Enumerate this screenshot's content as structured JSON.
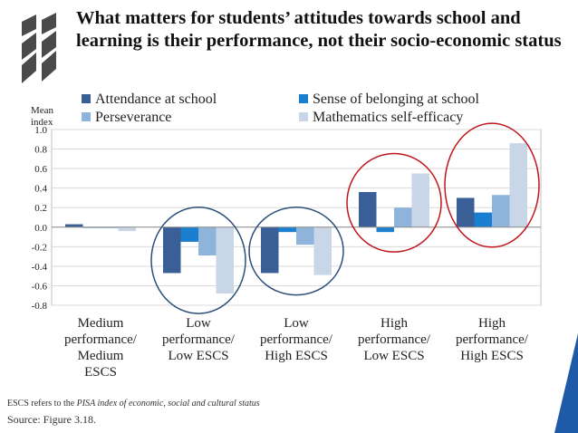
{
  "title": "What matters for students’ attitudes towards school and learning is their performance, not their socio-economic status",
  "logo": {
    "name": "oecd-logo",
    "color": "#4a4a4a"
  },
  "footnote": {
    "prefix": "ESCS refers to the ",
    "emph": "PISA index of economic, social and cultural status"
  },
  "source": "Source: Figure 3.18.",
  "colors": {
    "accent": "#1e5aa8",
    "circle_blue": "#2a4f7a",
    "circle_red": "#c0141a"
  },
  "chart_data": {
    "type": "bar",
    "ylabel": "Mean index",
    "ylim": [
      -0.8,
      1.0
    ],
    "yticks": [
      "1.0",
      "0.8",
      "0.6",
      "0.4",
      "0.2",
      "0.0",
      "-0.2",
      "-0.4",
      "-0.6",
      "-0.8"
    ],
    "categories": [
      [
        "Medium",
        "performance/",
        "Medium",
        "ESCS"
      ],
      [
        "Low",
        "performance/",
        "Low ESCS"
      ],
      [
        "Low",
        "performance/",
        "High ESCS"
      ],
      [
        "High",
        "performance/",
        "Low ESCS"
      ],
      [
        "High",
        "performance/",
        "High ESCS"
      ]
    ],
    "series": [
      {
        "name": "Attendance at school",
        "color": "#3a5f96",
        "values": [
          0.03,
          -0.47,
          -0.47,
          0.36,
          0.3
        ]
      },
      {
        "name": "Sense of belonging at school",
        "color": "#1b7fd0",
        "values": [
          0.0,
          -0.15,
          -0.05,
          -0.05,
          0.15
        ]
      },
      {
        "name": "Perseverance",
        "color": "#8fb4dc",
        "values": [
          -0.01,
          -0.29,
          -0.18,
          0.2,
          0.33
        ]
      },
      {
        "name": "Mathematics self-efficacy",
        "color": "#c9d6e8",
        "values": [
          -0.04,
          -0.68,
          -0.49,
          0.55,
          0.86
        ]
      }
    ],
    "legend_position": "top",
    "grid": true,
    "highlight_circles": [
      {
        "category": 1,
        "color": "blue"
      },
      {
        "category": 2,
        "color": "blue"
      },
      {
        "category": 3,
        "color": "red"
      },
      {
        "category": 4,
        "color": "red"
      }
    ]
  }
}
